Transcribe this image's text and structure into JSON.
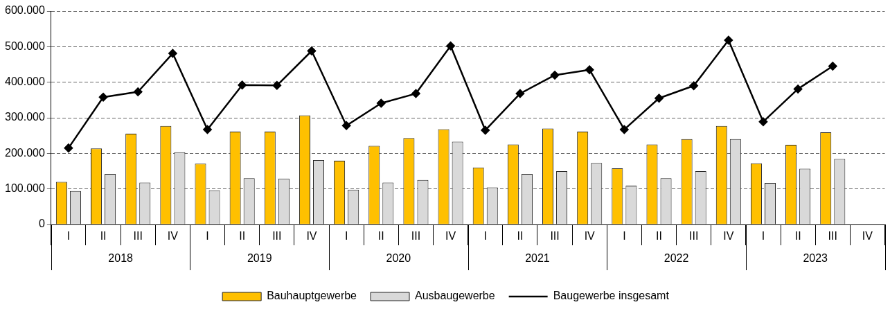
{
  "chart_data": {
    "type": "bar",
    "categories": [
      "I",
      "II",
      "III",
      "IV",
      "I",
      "II",
      "III",
      "IV",
      "I",
      "II",
      "III",
      "IV",
      "I",
      "II",
      "III",
      "IV",
      "I",
      "II",
      "III",
      "IV",
      "I",
      "II",
      "III",
      "IV"
    ],
    "annotations": [
      "2018",
      "2019",
      "2020",
      "2021",
      "2022",
      "2023"
    ],
    "series": [
      {
        "name": "Bauhauptgewerbe",
        "color": "#ffc000",
        "values": [
          120000,
          214000,
          255000,
          277000,
          171000,
          261000,
          261000,
          307000,
          179000,
          221000,
          243000,
          268000,
          160000,
          225000,
          270000,
          261000,
          158000,
          225000,
          240000,
          277000,
          172000,
          224000,
          259000,
          null
        ]
      },
      {
        "name": "Ausbaugewerbe",
        "color": "#d9d9d9",
        "values": [
          94000,
          142000,
          118000,
          203000,
          96000,
          130000,
          129000,
          181000,
          98000,
          118000,
          125000,
          233000,
          104000,
          142000,
          150000,
          173000,
          109000,
          130000,
          150000,
          240000,
          117000,
          157000,
          184000,
          null
        ]
      },
      {
        "name": "Baugewerbe insgesamt",
        "type": "line",
        "color": "#000000",
        "marker": "diamond",
        "values": [
          215000,
          358000,
          373000,
          481000,
          267000,
          392000,
          391000,
          488000,
          278000,
          341000,
          368000,
          502000,
          265000,
          368000,
          420000,
          435000,
          267000,
          355000,
          390000,
          518000,
          289000,
          381000,
          445000,
          null
        ]
      }
    ],
    "ylim": [
      0,
      600000
    ],
    "yticks": [
      0,
      {
        "value": 100000,
        "label": "100.000"
      },
      {
        "value": 200000,
        "label": "200.000"
      },
      {
        "value": 300000,
        "label": "300.000"
      },
      {
        "value": 400000,
        "label": "400.000"
      },
      {
        "value": 500000,
        "label": "500.000"
      },
      {
        "value": 600000,
        "label": "600.000"
      }
    ],
    "grid": "y",
    "legend": "bottom"
  }
}
